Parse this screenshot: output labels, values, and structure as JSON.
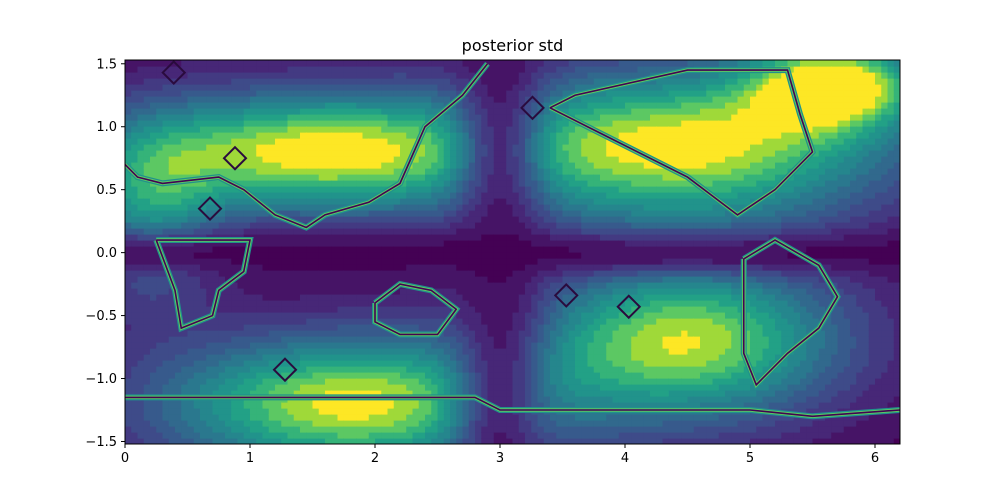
{
  "chart_data": {
    "type": "heatmap",
    "title": "posterior std",
    "xlabel": "",
    "ylabel": "",
    "xlim": [
      0,
      6.2
    ],
    "ylim": [
      -1.52,
      1.53
    ],
    "xticks": [
      0,
      1,
      2,
      3,
      4,
      5,
      6
    ],
    "xtick_labels": [
      "0",
      "1",
      "2",
      "3",
      "4",
      "5",
      "6"
    ],
    "yticks": [
      -1.5,
      -1.0,
      -0.5,
      0.0,
      0.5,
      1.0,
      1.5
    ],
    "ytick_labels": [
      "−1.5",
      "−1.0",
      "−0.5",
      "0.0",
      "0.5",
      "1.0",
      "1.5"
    ],
    "colormap": "viridis",
    "colors": {
      "low": "#440154",
      "mid": "#21918c",
      "high": "#fde725"
    },
    "grid": false,
    "legend": false,
    "surface": {
      "description_of_field": "filled contour of posterior std over longitude-latitude grid; low near equator bands, high in mid-latitude blobs",
      "blobs": [
        {
          "x": 1.5,
          "y": 0.8,
          "sx": 1.1,
          "sy": 0.35,
          "amp": 1.0
        },
        {
          "x": 4.5,
          "y": 0.85,
          "sx": 1.2,
          "sy": 0.45,
          "amp": 1.0
        },
        {
          "x": 1.8,
          "y": -1.2,
          "sx": 1.1,
          "sy": 0.4,
          "amp": 1.0
        },
        {
          "x": 4.5,
          "y": -0.7,
          "sx": 0.9,
          "sy": 0.45,
          "amp": 0.95
        },
        {
          "x": 5.7,
          "y": 1.35,
          "sx": 0.5,
          "sy": 0.25,
          "amp": 0.9
        },
        {
          "x": 0.2,
          "y": 0.3,
          "sx": 0.4,
          "sy": 0.5,
          "amp": 0.5
        }
      ],
      "equator_band": {
        "y": 0.0,
        "width": 0.12,
        "depth": 0.9
      },
      "meridian_band": {
        "x": 3.0,
        "width": 0.25,
        "depth": 0.8
      }
    },
    "contour_outlines": [
      {
        "name": "north-america-outline",
        "points": [
          [
            2.9,
            1.5
          ],
          [
            2.7,
            1.25
          ],
          [
            2.4,
            1.0
          ],
          [
            2.2,
            0.55
          ],
          [
            1.95,
            0.4
          ],
          [
            1.6,
            0.3
          ],
          [
            1.45,
            0.2
          ],
          [
            1.2,
            0.3
          ],
          [
            0.95,
            0.5
          ],
          [
            0.75,
            0.6
          ],
          [
            0.3,
            0.55
          ],
          [
            0.1,
            0.6
          ],
          [
            0.0,
            0.7
          ]
        ]
      },
      {
        "name": "europe-africa-outline",
        "points": [
          [
            3.4,
            1.15
          ],
          [
            3.8,
            0.95
          ],
          [
            4.5,
            0.6
          ],
          [
            4.9,
            0.3
          ],
          [
            5.2,
            0.5
          ],
          [
            5.5,
            0.8
          ],
          [
            5.4,
            1.1
          ],
          [
            5.3,
            1.45
          ],
          [
            4.5,
            1.45
          ],
          [
            3.6,
            1.25
          ],
          [
            3.4,
            1.15
          ]
        ]
      },
      {
        "name": "south-america-outline",
        "points": [
          [
            0.25,
            0.1
          ],
          [
            0.4,
            -0.3
          ],
          [
            0.45,
            -0.6
          ],
          [
            0.7,
            -0.5
          ],
          [
            0.75,
            -0.3
          ],
          [
            0.95,
            -0.15
          ],
          [
            1.0,
            0.1
          ],
          [
            0.25,
            0.1
          ]
        ]
      },
      {
        "name": "australia-outline",
        "points": [
          [
            2.0,
            -0.4
          ],
          [
            2.2,
            -0.25
          ],
          [
            2.45,
            -0.3
          ],
          [
            2.65,
            -0.45
          ],
          [
            2.5,
            -0.65
          ],
          [
            2.2,
            -0.65
          ],
          [
            2.0,
            -0.55
          ],
          [
            2.0,
            -0.4
          ]
        ]
      },
      {
        "name": "south-america-east-outline",
        "points": [
          [
            4.95,
            -0.05
          ],
          [
            5.2,
            0.1
          ],
          [
            5.55,
            -0.1
          ],
          [
            5.7,
            -0.35
          ],
          [
            5.55,
            -0.6
          ],
          [
            5.3,
            -0.8
          ],
          [
            5.05,
            -1.05
          ],
          [
            4.95,
            -0.8
          ],
          [
            4.95,
            -0.05
          ]
        ]
      },
      {
        "name": "antarctica-outline",
        "points": [
          [
            0.0,
            -1.15
          ],
          [
            2.8,
            -1.15
          ],
          [
            3.0,
            -1.25
          ],
          [
            4.0,
            -1.25
          ],
          [
            4.5,
            -1.25
          ],
          [
            5.0,
            -1.25
          ],
          [
            5.5,
            -1.3
          ],
          [
            6.2,
            -1.25
          ]
        ]
      }
    ],
    "diamond_markers": [
      {
        "x": 1.28,
        "y": -0.93
      },
      {
        "x": 3.53,
        "y": -0.34
      },
      {
        "x": 4.03,
        "y": -0.43
      },
      {
        "x": 0.39,
        "y": 1.43
      },
      {
        "x": 3.26,
        "y": 1.15
      },
      {
        "x": 0.88,
        "y": 0.75
      },
      {
        "x": 0.68,
        "y": 0.35
      }
    ]
  }
}
